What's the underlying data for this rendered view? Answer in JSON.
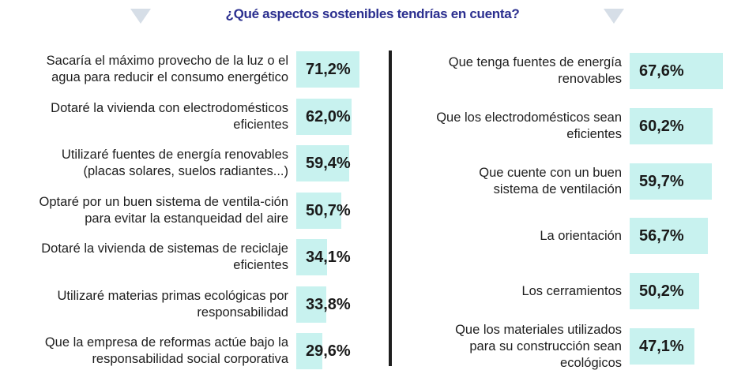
{
  "chart_data": [
    {
      "type": "bar",
      "title": "¿Qué aspectos sostenibles tendrías en cuenta?",
      "orientation": "horizontal",
      "categories": [
        "Sacaría el máximo provecho de la luz o el agua para reducir el consumo energético",
        "Dotaré la vivienda con electrodomésticos eficientes",
        "Utilizaré fuentes de energía renovables (placas solares, suelos radiantes...)",
        "Optaré por un buen sistema de ventila-ción para evitar la estanqueidad del aire",
        "Dotaré la vivienda de sistemas de reciclaje eficientes",
        "Utilizaré materias primas ecológicas por responsabilidad",
        "Que la empresa de reformas actúe bajo la responsabilidad social corporativa"
      ],
      "values": [
        71.2,
        62.0,
        59.4,
        50.7,
        34.1,
        33.8,
        29.6
      ],
      "value_labels": [
        "71,2%",
        "62,0%",
        "59,4%",
        "50,7%",
        "34,1%",
        "33,8%",
        "29,6%"
      ],
      "unit": "%"
    },
    {
      "type": "bar",
      "orientation": "horizontal",
      "categories": [
        "Que tenga fuentes de energía renovables",
        "Que los electrodomésticos sean eficientes",
        "Que cuente con un buen sistema de ventilación",
        "La orientación",
        "Los cerramientos",
        "Que los materiales utilizados para su construcción sean ecológicos"
      ],
      "values": [
        67.6,
        60.2,
        59.7,
        56.7,
        50.2,
        47.1
      ],
      "value_labels": [
        "67,6%",
        "60,2%",
        "59,7%",
        "56,7%",
        "50,2%",
        "47,1%"
      ],
      "unit": "%"
    }
  ],
  "colors": {
    "bar": "#c8f2ef",
    "title": "#2b2f8f",
    "triangle": "#d6dee7"
  }
}
